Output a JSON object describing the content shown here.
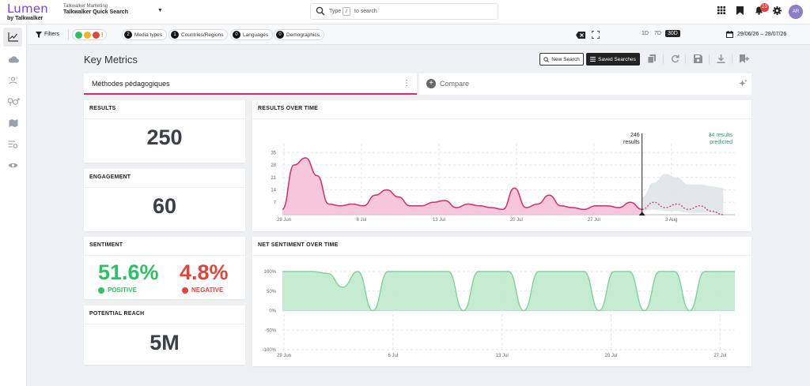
{
  "app": {
    "logo_main": "Lumen",
    "logo_sub": "by Talkwalker",
    "project_org": "Talkwalker Marketing",
    "project_name": "Talkwalker Quick Search"
  },
  "search": {
    "placeholder_a": "Type",
    "shortcut": "/",
    "placeholder_b": "to search"
  },
  "header": {
    "notification_count": "23",
    "avatar_initials": "AR"
  },
  "filters": {
    "label": "Filters",
    "chips": [
      {
        "count": "2",
        "label": "Media types"
      },
      {
        "count": "1",
        "label": "Countries/Regions"
      },
      {
        "count": "0",
        "label": "Languages"
      },
      {
        "count": "0",
        "label": "Demographics"
      }
    ],
    "ranges": [
      "1D",
      "7D",
      "30D"
    ],
    "active_range": "30D",
    "date_range": "29/06/26 – 28/07/26"
  },
  "page": {
    "title": "Key Metrics",
    "new_search": "New Search",
    "saved_searches": "Saved Searches"
  },
  "query": {
    "name": "Méthodes pédagogiques",
    "compare": "Compare"
  },
  "metrics": {
    "results": {
      "title": "RESULTS",
      "value": "250"
    },
    "engagement": {
      "title": "ENGAGEMENT",
      "value": "60"
    },
    "sentiment": {
      "title": "SENTIMENT",
      "positive_value": "51.6%",
      "positive_label": "POSITIVE",
      "negative_value": "4.8%",
      "negative_label": "NEGATIVE"
    },
    "reach": {
      "title": "POTENTIAL REACH",
      "value": "5M"
    }
  },
  "colors": {
    "accent": "#d12d6f",
    "positive": "#2ec163",
    "negative": "#e0463a",
    "brand": "#7b3fe4"
  },
  "chart_data": [
    {
      "type": "area",
      "title": "RESULTS OVER TIME",
      "yticks": [
        "7",
        "14",
        "21",
        "28",
        "35"
      ],
      "ylim": [
        0,
        40
      ],
      "xtick_labels": [
        "29 Jun",
        "6 Jul",
        "13 Jul",
        "20 Jul",
        "27 Jul",
        "3 Aug"
      ],
      "annotation_total": "246",
      "annotation_total_label": "results",
      "annotation_predicted": "34 results",
      "annotation_predicted_label": "predicted",
      "series": [
        {
          "values": [
            3,
            28,
            32,
            22,
            6,
            5,
            6,
            5,
            11,
            14,
            10,
            5,
            5,
            7,
            8,
            4,
            6,
            5,
            4,
            3,
            15,
            4,
            6,
            11,
            5,
            4,
            3,
            5,
            5,
            4,
            7,
            3
          ]
        }
      ],
      "forecast": [
        3,
        7,
        4,
        6,
        3,
        5,
        2,
        0
      ],
      "forecast_upper": [
        10,
        18,
        23,
        21,
        17,
        17,
        16,
        15
      ],
      "forecast_lower": [
        2,
        3,
        2,
        2,
        1,
        1,
        1,
        0
      ],
      "grid": true
    },
    {
      "type": "area",
      "title": "NET SENTIMENT OVER TIME",
      "yticks": [
        "100%",
        "50%",
        "0%",
        "-50%",
        "-100%"
      ],
      "ylim": [
        -100,
        100
      ],
      "xtick_labels": [
        "29 Jun",
        "6 Jul",
        "13 Jul",
        "20 Jul",
        "27 Jul"
      ],
      "series": [
        {
          "values": [
            100,
            100,
            100,
            95,
            60,
            100,
            0,
            100,
            100,
            100,
            100,
            100,
            0,
            100,
            100,
            100,
            0,
            100,
            100,
            100,
            100,
            0,
            100,
            100,
            0,
            100,
            100,
            0,
            100,
            100,
            100
          ]
        }
      ],
      "grid": true
    }
  ]
}
